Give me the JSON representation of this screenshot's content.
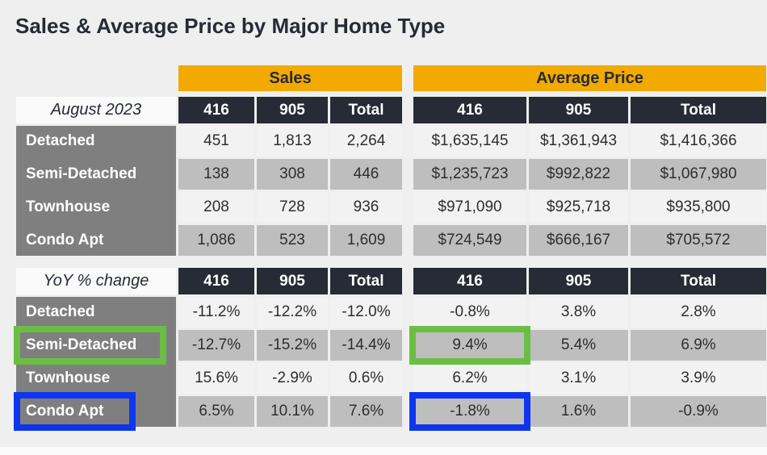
{
  "title": "Sales & Average Price by Major Home Type",
  "column_groups": {
    "sales": "Sales",
    "average_price": "Average Price"
  },
  "chart_data": [
    {
      "type": "table",
      "name": "August 2023",
      "column_groups": [
        "Sales",
        "Average Price"
      ],
      "columns": [
        "416",
        "905",
        "Total",
        "416",
        "905",
        "Total"
      ],
      "rows": [
        {
          "label": "Detached",
          "values": [
            "451",
            "1,813",
            "2,264",
            "$1,635,145",
            "$1,361,943",
            "$1,416,366"
          ]
        },
        {
          "label": "Semi-Detached",
          "values": [
            "138",
            "308",
            "446",
            "$1,235,723",
            "$992,822",
            "$1,067,980"
          ]
        },
        {
          "label": "Townhouse",
          "values": [
            "208",
            "728",
            "936",
            "$971,090",
            "$925,718",
            "$935,800"
          ]
        },
        {
          "label": "Condo Apt",
          "values": [
            "1,086",
            "523",
            "1,609",
            "$724,549",
            "$666,167",
            "$705,572"
          ]
        }
      ]
    },
    {
      "type": "table",
      "name": "YoY % change",
      "column_groups": [
        "Sales",
        "Average Price"
      ],
      "columns": [
        "416",
        "905",
        "Total",
        "416",
        "905",
        "Total"
      ],
      "rows": [
        {
          "label": "Detached",
          "values": [
            "-11.2%",
            "-12.2%",
            "-12.0%",
            "-0.8%",
            "3.8%",
            "2.8%"
          ]
        },
        {
          "label": "Semi-Detached",
          "values": [
            "-12.7%",
            "-15.2%",
            "-14.4%",
            "9.4%",
            "5.4%",
            "6.9%"
          ],
          "highlight": "green"
        },
        {
          "label": "Townhouse",
          "values": [
            "15.6%",
            "-2.9%",
            "0.6%",
            "6.2%",
            "3.1%",
            "3.9%"
          ]
        },
        {
          "label": "Condo Apt",
          "values": [
            "6.5%",
            "10.1%",
            "7.6%",
            "-1.8%",
            "1.6%",
            "-0.9%"
          ],
          "highlight": "blue"
        }
      ]
    }
  ],
  "annotations": {
    "green_box_color": "#6BBE44",
    "blue_box_color": "#0D36EE",
    "green_boxes": [
      "Semi-Detached row label",
      "Semi-Detached Average Price 416 value 9.4%"
    ],
    "blue_boxes": [
      "Condo Apt row label",
      "Condo Apt Average Price 416 value -1.8%"
    ]
  },
  "colors": {
    "page_bg": "#EFEFEF",
    "header_orange": "#F2A900",
    "header_dark": "#262B35",
    "row_label_gray": "#7F7F7F",
    "row_light": "#F2F2F2",
    "row_shaded": "#BEBEBE"
  }
}
